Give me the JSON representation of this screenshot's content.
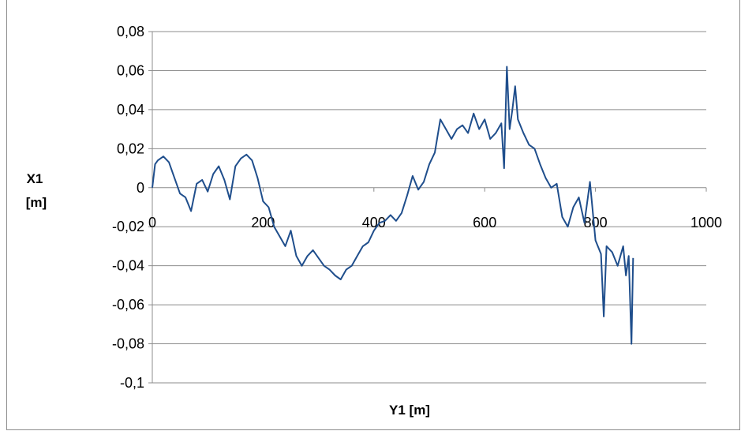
{
  "chart_data": {
    "type": "line",
    "title": "",
    "xlabel": "Y1 [m]",
    "ylabel_lines": [
      "X1",
      "[m]"
    ],
    "xlim": [
      0,
      1000
    ],
    "ylim": [
      -0.1,
      0.08
    ],
    "x_ticks": [
      0,
      200,
      400,
      600,
      800,
      1000
    ],
    "x_tick_labels": [
      "0",
      "200",
      "400",
      "600",
      "800",
      "1000"
    ],
    "y_ticks": [
      0.08,
      0.06,
      0.04,
      0.02,
      0,
      -0.02,
      -0.04,
      -0.06,
      -0.08,
      -0.1
    ],
    "y_tick_labels": [
      "0,08",
      "0,06",
      "0,04",
      "0,02",
      "0",
      "-0,02",
      "-0,04",
      "-0,06",
      "-0,08",
      "-0,1"
    ],
    "grid": "horizontal",
    "legend": "none",
    "series": [
      {
        "color": "#1f4e8c",
        "x": [
          0,
          5,
          10,
          20,
          30,
          40,
          50,
          60,
          70,
          80,
          90,
          100,
          110,
          120,
          130,
          140,
          150,
          160,
          170,
          180,
          190,
          200,
          210,
          220,
          230,
          240,
          250,
          260,
          270,
          280,
          290,
          300,
          310,
          320,
          330,
          340,
          350,
          360,
          370,
          380,
          390,
          400,
          410,
          420,
          430,
          440,
          450,
          460,
          470,
          480,
          490,
          500,
          510,
          520,
          530,
          540,
          550,
          560,
          570,
          580,
          590,
          600,
          610,
          620,
          630,
          635,
          640,
          645,
          650,
          655,
          660,
          670,
          680,
          690,
          700,
          710,
          720,
          730,
          740,
          750,
          760,
          770,
          780,
          790,
          800,
          810,
          815,
          820,
          830,
          840,
          850,
          855,
          860,
          865,
          868
        ],
        "y": [
          0.0,
          0.012,
          0.014,
          0.016,
          0.013,
          0.005,
          -0.003,
          -0.005,
          -0.012,
          0.002,
          0.004,
          -0.002,
          0.007,
          0.011,
          0.004,
          -0.006,
          0.011,
          0.015,
          0.017,
          0.014,
          0.005,
          -0.007,
          -0.01,
          -0.02,
          -0.025,
          -0.03,
          -0.022,
          -0.035,
          -0.04,
          -0.035,
          -0.032,
          -0.036,
          -0.04,
          -0.042,
          -0.045,
          -0.047,
          -0.042,
          -0.04,
          -0.035,
          -0.03,
          -0.028,
          -0.022,
          -0.018,
          -0.017,
          -0.014,
          -0.017,
          -0.013,
          -0.004,
          0.006,
          -0.001,
          0.003,
          0.012,
          0.018,
          0.035,
          0.03,
          0.025,
          0.03,
          0.032,
          0.028,
          0.038,
          0.03,
          0.035,
          0.025,
          0.028,
          0.033,
          0.01,
          0.062,
          0.03,
          0.04,
          0.052,
          0.035,
          0.028,
          0.022,
          0.02,
          0.012,
          0.005,
          0.0,
          0.002,
          -0.015,
          -0.02,
          -0.01,
          -0.005,
          -0.018,
          0.003,
          -0.027,
          -0.034,
          -0.066,
          -0.03,
          -0.033,
          -0.04,
          -0.03,
          -0.045,
          -0.035,
          -0.08,
          -0.036
        ]
      }
    ]
  }
}
